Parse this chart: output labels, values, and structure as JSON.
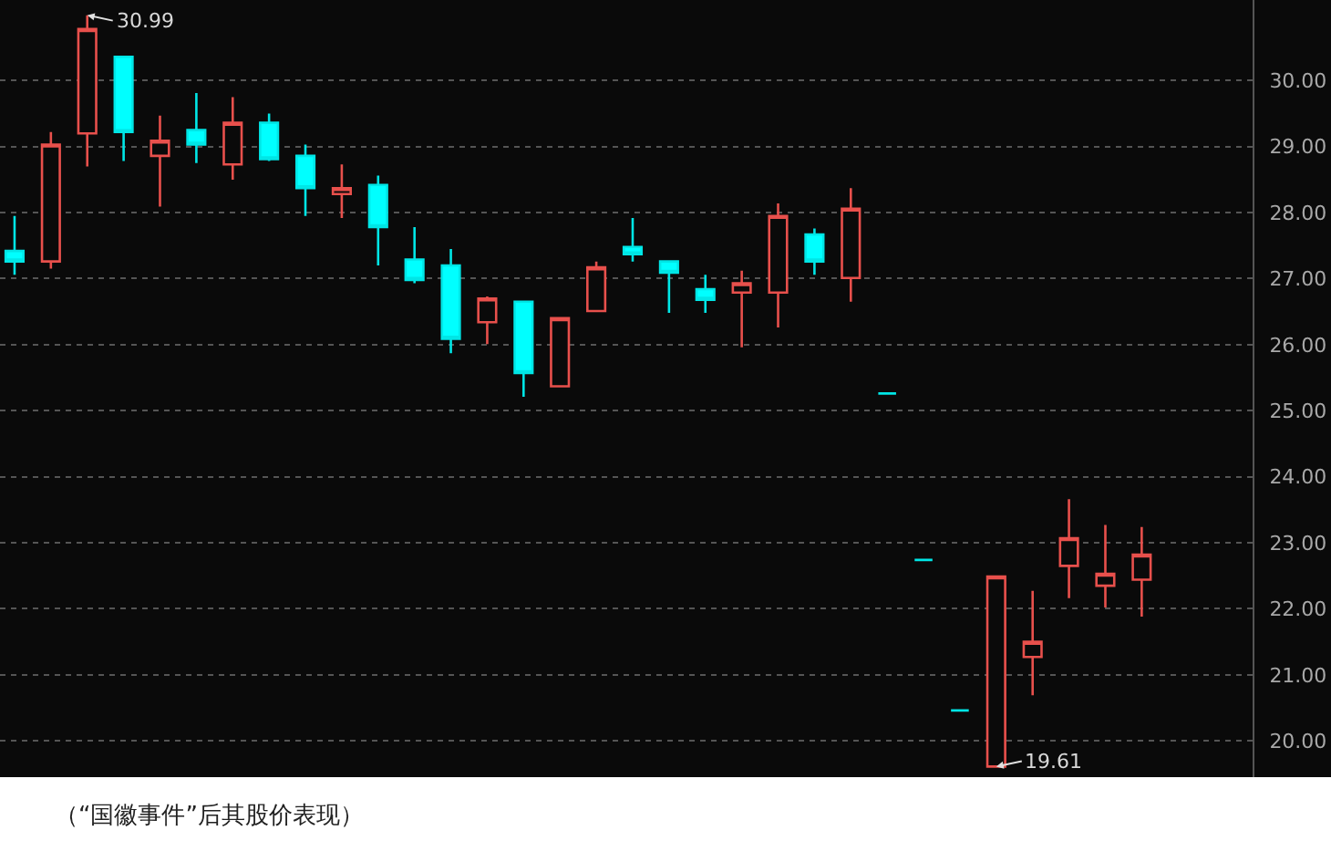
{
  "chart_data": {
    "type": "candlestick",
    "categories": [
      null,
      null,
      null,
      null,
      null,
      null,
      null,
      null,
      null,
      null,
      null,
      null,
      null,
      null,
      null,
      null,
      null,
      null,
      null,
      null,
      null,
      null,
      null,
      null,
      null,
      null,
      null,
      null,
      null,
      null,
      null,
      null
    ],
    "ohlc": [
      [
        27.42,
        27.95,
        27.06,
        27.26
      ],
      [
        27.26,
        29.22,
        27.15,
        29.03
      ],
      [
        29.2,
        30.99,
        28.7,
        30.78
      ],
      [
        30.36,
        30.36,
        28.78,
        29.22
      ],
      [
        28.86,
        29.47,
        28.09,
        29.09
      ],
      [
        29.25,
        29.81,
        28.75,
        29.03
      ],
      [
        28.73,
        29.75,
        28.5,
        29.36
      ],
      [
        29.36,
        29.5,
        28.78,
        28.81
      ],
      [
        28.86,
        29.03,
        27.95,
        28.37
      ],
      [
        28.28,
        28.73,
        27.92,
        28.37
      ],
      [
        28.42,
        28.56,
        27.2,
        27.78
      ],
      [
        27.29,
        27.78,
        26.93,
        26.98
      ],
      [
        27.2,
        27.45,
        25.87,
        26.09
      ],
      [
        26.34,
        26.73,
        26.01,
        26.7
      ],
      [
        26.65,
        26.65,
        25.21,
        25.57
      ],
      [
        25.37,
        26.4,
        25.37,
        26.4
      ],
      [
        26.51,
        27.26,
        26.51,
        27.17
      ],
      [
        27.48,
        27.92,
        27.26,
        27.37
      ],
      [
        27.26,
        27.26,
        26.48,
        27.09
      ],
      [
        26.84,
        27.06,
        26.48,
        26.68
      ],
      [
        26.79,
        27.12,
        25.96,
        26.93
      ],
      [
        26.79,
        28.14,
        26.26,
        27.95
      ],
      [
        27.67,
        27.76,
        27.06,
        27.26
      ],
      [
        27.01,
        28.37,
        26.65,
        28.06
      ],
      [
        25.26,
        25.26,
        25.26,
        25.26
      ],
      [
        22.74,
        22.74,
        22.74,
        22.74
      ],
      [
        20.46,
        20.46,
        20.46,
        20.46
      ],
      [
        19.61,
        22.49,
        19.61,
        22.49
      ],
      [
        21.27,
        22.27,
        20.69,
        21.5
      ],
      [
        22.65,
        23.66,
        22.16,
        23.07
      ],
      [
        22.35,
        23.27,
        22.02,
        22.53
      ],
      [
        22.44,
        23.24,
        21.88,
        22.82
      ]
    ],
    "ylim": [
      19.45,
      31.22
    ],
    "yticks": [
      {
        "value": 20,
        "label": "20.00"
      },
      {
        "value": 21,
        "label": "21.00"
      },
      {
        "value": 22,
        "label": "22.00"
      },
      {
        "value": 23,
        "label": "23.00"
      },
      {
        "value": 24,
        "label": "24.00"
      },
      {
        "value": 25,
        "label": "25.00"
      },
      {
        "value": 26,
        "label": "26.00"
      },
      {
        "value": 27,
        "label": "27.00"
      },
      {
        "value": 28,
        "label": "28.00"
      },
      {
        "value": 29,
        "label": "29.00"
      },
      {
        "value": 30,
        "label": "30.00"
      }
    ],
    "grid": "y",
    "tick_labels": "y",
    "annotations": [
      "30.99",
      "19.61",
      "（“国徽事件”后其股价表现）"
    ]
  }
}
